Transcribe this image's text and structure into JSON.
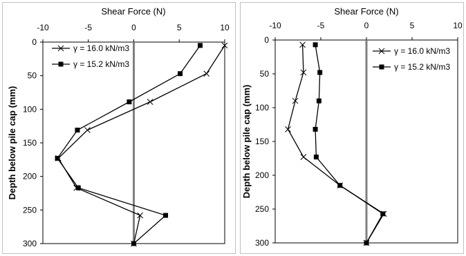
{
  "chart_data": [
    {
      "type": "line",
      "xlabel": "Shear Force (N)",
      "ylabel": "Depth below pile cap (mm)",
      "xlim": [
        -10,
        10
      ],
      "ylim": [
        0,
        300
      ],
      "x_ticks": [
        "-10",
        "-5",
        "0",
        "5",
        "10"
      ],
      "y_ticks": [
        "0",
        "50",
        "100",
        "150",
        "200",
        "250",
        "300"
      ],
      "y_inverted": true,
      "x_axis_position": "top",
      "zero_line_color": "#808080",
      "series": [
        {
          "name": "γ = 16.0 kN/m3",
          "marker": "x",
          "x": [
            10.0,
            8.0,
            1.8,
            -5.1,
            -8.3,
            -6.3,
            0.7,
            0.0
          ],
          "y": [
            5,
            47,
            89,
            131,
            173,
            217,
            258,
            300
          ]
        },
        {
          "name": "γ = 15.2 kN/m3",
          "marker": "square",
          "x": [
            7.3,
            5.1,
            -0.5,
            -6.2,
            -8.4,
            -6.1,
            3.5,
            0.0
          ],
          "y": [
            5,
            47,
            89,
            131,
            173,
            217,
            258,
            300
          ]
        }
      ],
      "legend_position": "top-left"
    },
    {
      "type": "line",
      "xlabel": "Shear Force (N)",
      "ylabel": "Depth below pile cap (mm)",
      "xlim": [
        -10,
        10
      ],
      "ylim": [
        0,
        300
      ],
      "x_ticks": [
        "-10",
        "-5",
        "0",
        "5",
        "10"
      ],
      "y_ticks": [
        "0",
        "50",
        "100",
        "150",
        "200",
        "250",
        "300"
      ],
      "y_inverted": true,
      "x_axis_position": "top",
      "zero_line_color": "#808080",
      "series": [
        {
          "name": "γ = 16.0 kN/m3",
          "marker": "x",
          "x": [
            -7.0,
            -6.9,
            -7.8,
            -8.6,
            -6.9,
            -2.9,
            1.9,
            0.0
          ],
          "y": [
            7,
            48,
            90,
            132,
            173,
            215,
            257,
            300
          ]
        },
        {
          "name": "γ = 15.2 kN/m3",
          "marker": "square",
          "x": [
            -5.6,
            -5.1,
            -5.2,
            -5.6,
            -5.5,
            -2.9,
            1.8,
            0.0
          ],
          "y": [
            7,
            48,
            90,
            132,
            173,
            215,
            257,
            300
          ]
        }
      ],
      "legend_position": "top-right"
    }
  ]
}
